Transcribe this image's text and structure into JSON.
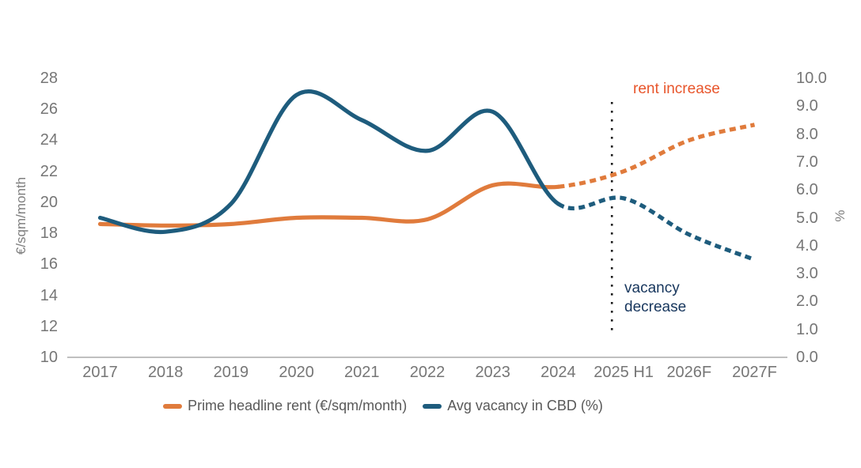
{
  "chart": {
    "left_axis": {
      "title": "€/sqm/month",
      "ticks": [
        "28",
        "26",
        "24",
        "22",
        "20",
        "18",
        "16",
        "14",
        "12",
        "10"
      ]
    },
    "right_axis": {
      "title": "%",
      "ticks": [
        "10.0",
        "9.0",
        "8.0",
        "7.0",
        "6.0",
        "5.0",
        "4.0",
        "3.0",
        "2.0",
        "1.0",
        "0.0"
      ]
    },
    "annotations": {
      "rent_increase": "rent increase",
      "vacancy_decrease": "vacancy decrease"
    }
  },
  "chart_data": {
    "type": "line",
    "title": "",
    "categories": [
      "2017",
      "2018",
      "2019",
      "2020",
      "2021",
      "2022",
      "2023",
      "2024",
      "2025 H1",
      "2026F",
      "2027F"
    ],
    "series": [
      {
        "name": "Prime headline rent (€/sqm/month)",
        "axis": "left",
        "color": "#E07B3C",
        "line_style": "solid then dotted forecast",
        "solid_until_index": 7,
        "values": [
          18.6,
          18.5,
          18.6,
          19.0,
          19.0,
          18.9,
          21.1,
          21.0,
          22.0,
          24.0,
          25.0
        ]
      },
      {
        "name": "Avg vacancy in CBD (%)",
        "axis": "right",
        "color": "#1E5C7D",
        "line_style": "solid then dotted forecast",
        "solid_until_index": 7,
        "values": [
          5.0,
          4.5,
          5.5,
          9.4,
          8.5,
          7.4,
          8.8,
          5.5,
          5.7,
          4.4,
          3.5
        ]
      }
    ],
    "left_axis": {
      "label": "€/sqm/month",
      "min": 10,
      "max": 28,
      "tick_step": 2
    },
    "right_axis": {
      "label": "%",
      "min": 0,
      "max": 10,
      "tick_step": 1
    },
    "forecast_divider": {
      "style": "vertical dotted black line",
      "between_categories": [
        "2024",
        "2025 H1"
      ],
      "position_between_index": 7.82
    },
    "annotations": [
      {
        "text": "rent increase",
        "color": "#E8552B",
        "position": "top right, above rent forecast"
      },
      {
        "text": "vacancy decrease",
        "color": "#17365D",
        "position": "bottom right, below vacancy forecast"
      }
    ],
    "legend_position": "bottom",
    "grid": false
  }
}
